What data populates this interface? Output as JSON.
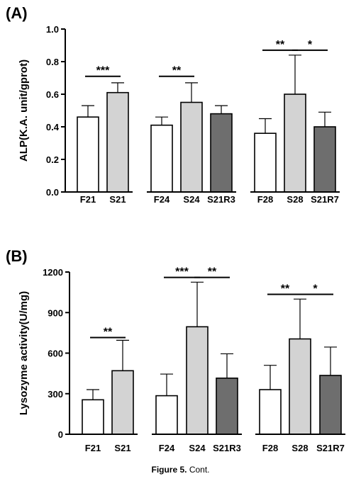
{
  "caption": {
    "label": "Figure 5.",
    "text": " Cont."
  },
  "chart_data": [
    {
      "panel_label": "(A)",
      "type": "bar",
      "ylabel": "ALP(K.A. unit/gprot)",
      "ylim": [
        0,
        1.0
      ],
      "yticks": [
        "0.0",
        "0.2",
        "0.4",
        "0.6",
        "0.8",
        "1.0"
      ],
      "ytick_values": [
        0,
        0.2,
        0.4,
        0.6,
        0.8,
        1.0
      ],
      "categories": [
        "F21",
        "S21",
        "F24",
        "S24",
        "S21R3",
        "F28",
        "S28",
        "S21R7"
      ],
      "values": [
        0.46,
        0.61,
        0.41,
        0.55,
        0.48,
        0.36,
        0.6,
        0.4
      ],
      "errors": [
        0.07,
        0.06,
        0.05,
        0.12,
        0.05,
        0.09,
        0.24,
        0.09
      ],
      "fills": [
        "#ffffff",
        "#d3d3d3",
        "#ffffff",
        "#d3d3d3",
        "#6e6e6e",
        "#ffffff",
        "#d3d3d3",
        "#6e6e6e"
      ],
      "significance": [
        {
          "from": 0,
          "to": 1,
          "label": "***",
          "y": 0.71
        },
        {
          "from": 2,
          "to": 3,
          "label": "**",
          "y": 0.71
        },
        {
          "from": 5,
          "to": 6,
          "label": "**",
          "y": 0.87
        },
        {
          "from": 6,
          "to": 7,
          "label": "*",
          "y": 0.87
        }
      ]
    },
    {
      "panel_label": "(B)",
      "type": "bar",
      "ylabel": "Lysozyme activity(U/mg)",
      "ylim": [
        0,
        1200
      ],
      "yticks": [
        "0",
        "300",
        "600",
        "900",
        "1200"
      ],
      "ytick_values": [
        0,
        300,
        600,
        900,
        1200
      ],
      "categories": [
        "F21",
        "S21",
        "F24",
        "S24",
        "S21R3",
        "F28",
        "S28",
        "S21R7"
      ],
      "values": [
        255,
        470,
        285,
        795,
        415,
        330,
        705,
        435
      ],
      "errors": [
        75,
        225,
        160,
        330,
        180,
        180,
        295,
        210
      ],
      "fills": [
        "#ffffff",
        "#d3d3d3",
        "#ffffff",
        "#d3d3d3",
        "#6e6e6e",
        "#ffffff",
        "#d3d3d3",
        "#6e6e6e"
      ],
      "significance": [
        {
          "from": 0,
          "to": 1,
          "label": "**",
          "y": 715
        },
        {
          "from": 2,
          "to": 3,
          "label": "***",
          "y": 1160
        },
        {
          "from": 3,
          "to": 4,
          "label": "**",
          "y": 1160
        },
        {
          "from": 5,
          "to": 6,
          "label": "**",
          "y": 1035
        },
        {
          "from": 6,
          "to": 7,
          "label": "*",
          "y": 1035
        }
      ]
    }
  ]
}
